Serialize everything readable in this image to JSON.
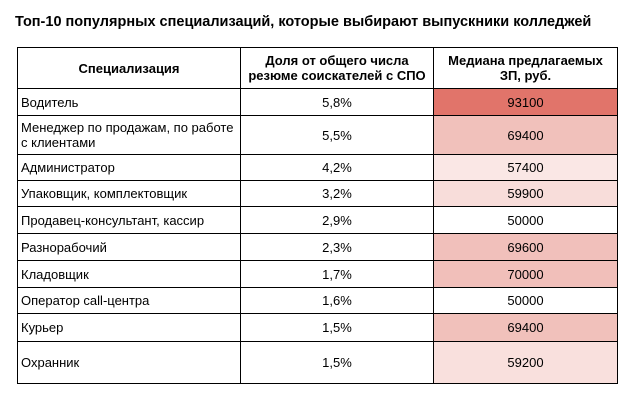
{
  "title": "Топ-10 популярных специализаций, которые выбирают выпускники колледжей",
  "table": {
    "columns": [
      "Специализация",
      "Доля от общего числа резюме соискателей с СПО",
      "Медиана предлагаемых ЗП, руб."
    ],
    "rows": [
      {
        "specialization": "Водитель",
        "share": "5,8%",
        "median_salary": "93100",
        "salary_bg": "#E1746A"
      },
      {
        "specialization": "Менеджер по продажам, по работе с клиентами",
        "share": "5,5%",
        "median_salary": "69400",
        "salary_bg": "#F1C1BB"
      },
      {
        "specialization": "Администратор",
        "share": "4,2%",
        "median_salary": "57400",
        "salary_bg": "#FAE7E5"
      },
      {
        "specialization": "Упаковщик, комплектовщик",
        "share": "3,2%",
        "median_salary": "59900",
        "salary_bg": "#F8DDDA"
      },
      {
        "specialization": "Продавец-консультант, кассир",
        "share": "2,9%",
        "median_salary": "50000",
        "salary_bg": "#FFFFFF"
      },
      {
        "specialization": "Разнорабочий",
        "share": "2,3%",
        "median_salary": "69600",
        "salary_bg": "#F1C0BB"
      },
      {
        "specialization": "Кладовщик",
        "share": "1,7%",
        "median_salary": "70000",
        "salary_bg": "#F1BFBA"
      },
      {
        "specialization": "Оператор call-центра",
        "share": "1,6%",
        "median_salary": "50000",
        "salary_bg": "#FFFFFF"
      },
      {
        "specialization": "Курьер",
        "share": "1,5%",
        "median_salary": "69400",
        "salary_bg": "#F1C1BB"
      },
      {
        "specialization": "Охранник",
        "share": "1,5%",
        "median_salary": "59200",
        "salary_bg": "#F9E0DD"
      }
    ]
  },
  "colors": {
    "border": "#000000",
    "text": "#000000",
    "salary_scale_min_color": "#FFFFFF",
    "salary_scale_max_color": "#E1746A"
  },
  "chart_data": {
    "type": "table",
    "title": "Топ-10 популярных специализаций, которые выбирают выпускники колледжей",
    "categories": [
      "Водитель",
      "Менеджер по продажам, по работе с клиентами",
      "Администратор",
      "Упаковщик, комплектовщик",
      "Продавец-консультант, кассир",
      "Разнорабочий",
      "Кладовщик",
      "Оператор call-центра",
      "Курьер",
      "Охранник"
    ],
    "series": [
      {
        "name": "Доля от общего числа резюме соискателей с СПО",
        "unit": "%",
        "values": [
          5.8,
          5.5,
          4.2,
          3.2,
          2.9,
          2.3,
          1.7,
          1.6,
          1.5,
          1.5
        ]
      },
      {
        "name": "Медиана предлагаемых ЗП, руб.",
        "unit": "руб.",
        "values": [
          93100,
          69400,
          57400,
          59900,
          50000,
          69600,
          70000,
          50000,
          69400,
          59200
        ]
      }
    ],
    "notes": "Ячейки медианы ЗП залиты цветовой шкалой от белого (50000) до красного (93100)"
  }
}
